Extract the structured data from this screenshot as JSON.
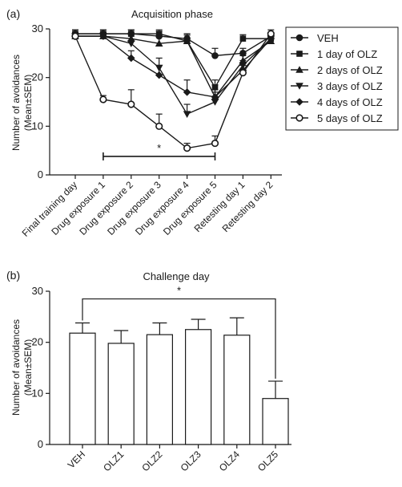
{
  "chart_data": [
    {
      "type": "line",
      "panel_label": "(a)",
      "title": "Acquisition phase",
      "xlabel": "",
      "ylabel_line1": "Number of avoidances",
      "ylabel_line2": "(Mean±SEM)",
      "ylim": [
        0,
        30
      ],
      "yticks": [
        0,
        10,
        20,
        30
      ],
      "categories": [
        "Final training day",
        "Drug exposure 1",
        "Drug exposure 2",
        "Drug exposure 3",
        "Drug exposure 4",
        "Drug exposure 5",
        "Retesting day 1",
        "Retesting day 2"
      ],
      "legend_position": "right",
      "series": [
        {
          "name": "VEH",
          "marker": "circle-filled",
          "values": [
            29,
            29,
            29,
            28.5,
            28,
            24.5,
            25,
            28.5
          ],
          "errors": [
            0.8,
            0.8,
            0.8,
            1,
            1,
            1.5,
            1,
            0.8
          ]
        },
        {
          "name": "1 day of OLZ",
          "marker": "square-filled",
          "values": [
            29,
            29,
            29,
            29,
            27.5,
            18,
            28,
            28
          ],
          "errors": [
            0.8,
            0.8,
            0.8,
            0.8,
            1.2,
            1.5,
            0.8,
            0.8
          ]
        },
        {
          "name": "2 days of OLZ",
          "marker": "triangle-up-filled",
          "values": [
            28.5,
            28.5,
            28,
            27,
            27.5,
            16,
            23.5,
            27.5
          ],
          "errors": [
            0.8,
            0.8,
            1,
            1.5,
            1.5,
            1.5,
            1.5,
            1
          ]
        },
        {
          "name": "3 days of OLZ",
          "marker": "triangle-down-filled",
          "values": [
            28.5,
            28.5,
            27,
            22,
            12.5,
            15,
            22.5,
            28
          ],
          "errors": [
            0.8,
            0.8,
            1.5,
            2,
            2,
            2,
            2,
            1
          ]
        },
        {
          "name": "4 days of OLZ",
          "marker": "diamond-filled",
          "values": [
            28.5,
            28.5,
            24,
            20.5,
            17,
            16,
            21.5,
            28
          ],
          "errors": [
            0.8,
            0.8,
            1.5,
            2,
            2.5,
            2.5,
            2,
            1
          ]
        },
        {
          "name": "5 days of OLZ",
          "marker": "circle-open",
          "values": [
            28.5,
            15.5,
            14.5,
            10,
            5.5,
            6.5,
            21,
            29
          ],
          "errors": [
            0.8,
            0.8,
            3,
            2.5,
            1,
            1.5,
            1.5,
            0.8
          ]
        }
      ],
      "annotation": {
        "text": "*",
        "from_category": 1,
        "to_category": 5,
        "y": 3.8
      }
    },
    {
      "type": "bar",
      "panel_label": "(b)",
      "title": "Challenge day",
      "xlabel": "",
      "ylabel_line1": "Number of avoidances",
      "ylabel_line2": "(Mean±SEM)",
      "ylim": [
        0,
        30
      ],
      "yticks": [
        0,
        10,
        20,
        30
      ],
      "categories": [
        "VEH",
        "OLZ1",
        "OLZ2",
        "OLZ3",
        "OLZ4",
        "OLZ5"
      ],
      "values": [
        21.8,
        19.8,
        21.5,
        22.5,
        21.4,
        9
      ],
      "errors": [
        2,
        2.5,
        2.3,
        2,
        3.4,
        3.4
      ],
      "annotation": {
        "text": "*",
        "from_category": 0,
        "to_category": 5,
        "y": 28.5
      }
    }
  ]
}
